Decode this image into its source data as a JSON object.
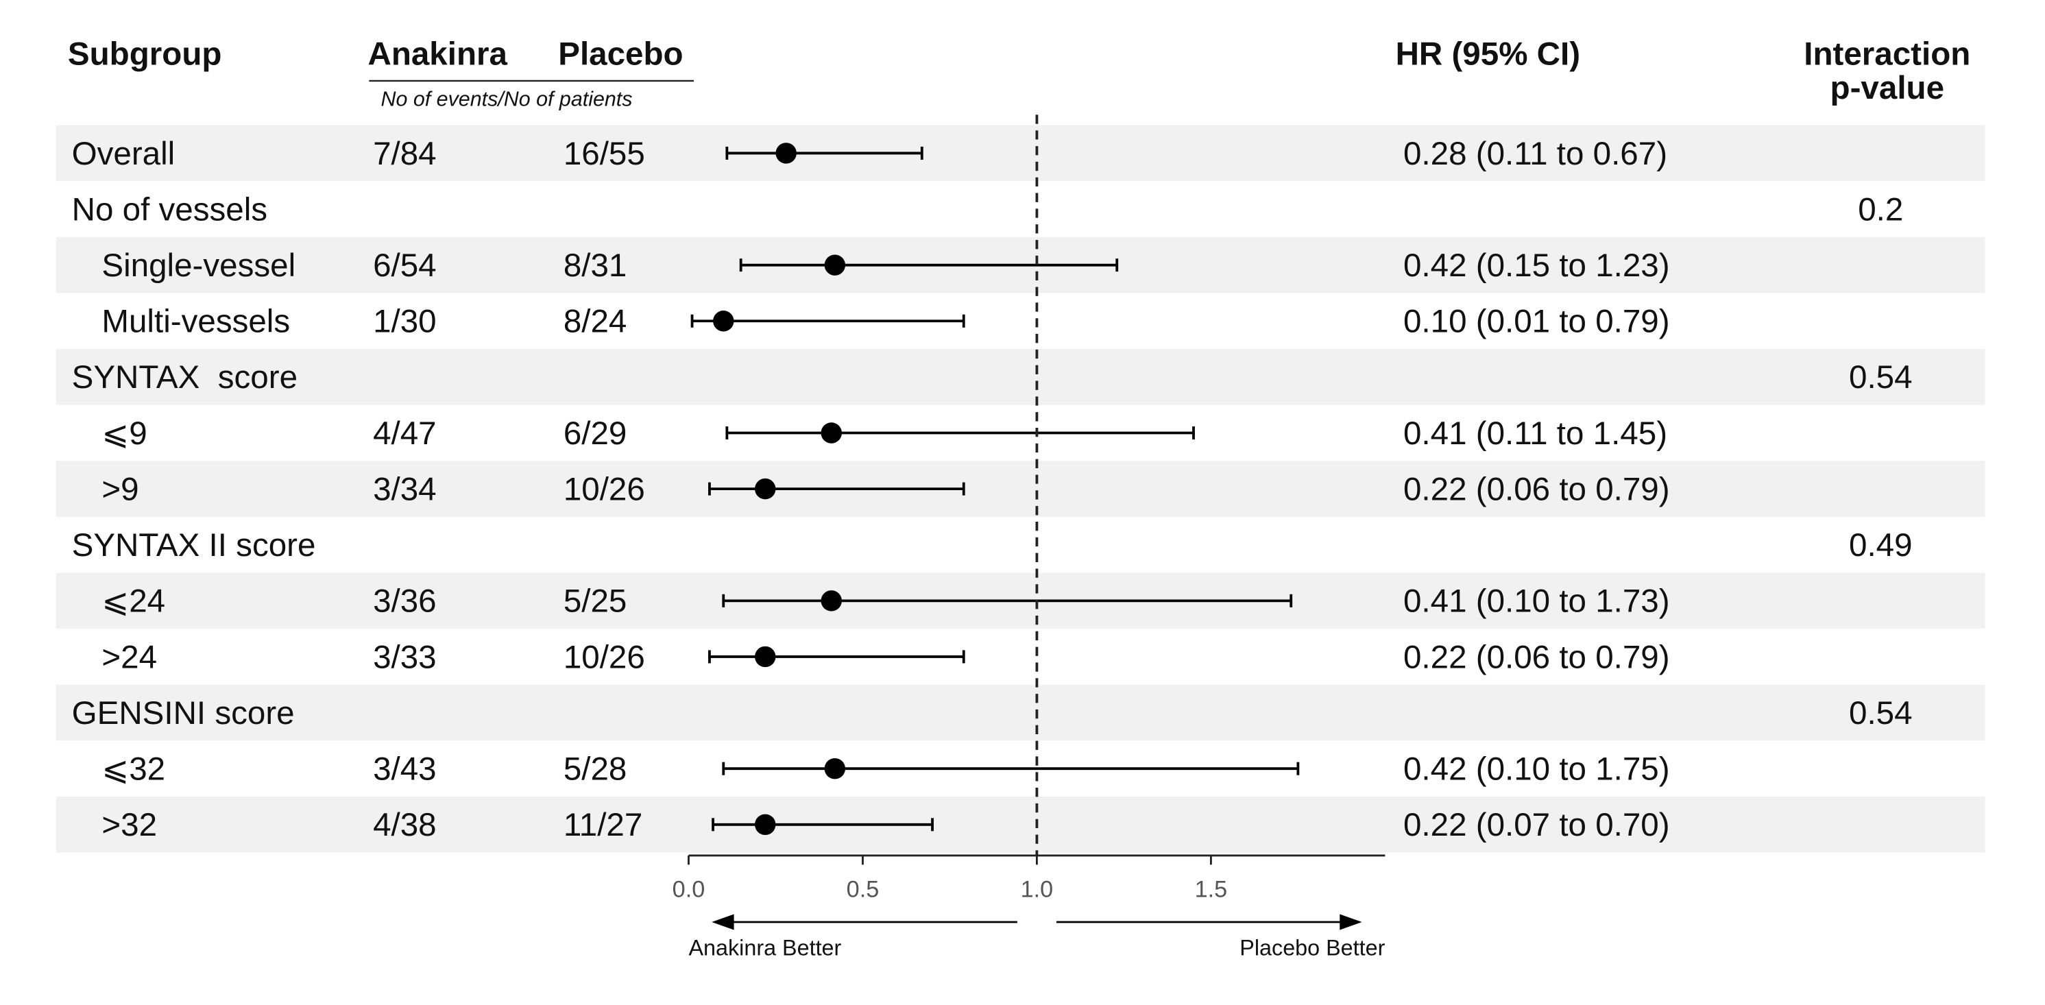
{
  "chart_data": {
    "type": "forest",
    "headers": {
      "subgroup": "Subgroup",
      "anakinra": "Anakinra",
      "placebo": "Placebo",
      "events_note": "No of events/No of patients",
      "hr": "HR (95% CI)",
      "p_value": [
        "Interaction",
        "p-value"
      ]
    },
    "categories": [
      "Overall",
      "No of vessels",
      "Single-vessel",
      "Multi-vessels",
      "SYNTAX  score",
      "⩽9",
      ">9",
      "SYNTAX II score",
      "⩽24",
      ">24",
      "GENSINI score",
      "⩽32",
      ">32"
    ],
    "indented": [
      false,
      false,
      true,
      true,
      false,
      true,
      true,
      false,
      true,
      true,
      false,
      true,
      true
    ],
    "anakinra": [
      "7/84",
      null,
      "6/54",
      "1/30",
      null,
      "4/47",
      "3/34",
      null,
      "3/36",
      "3/33",
      null,
      "3/43",
      "4/38"
    ],
    "placebo": [
      "16/55",
      null,
      "8/31",
      "8/24",
      null,
      "6/29",
      "10/26",
      null,
      "5/25",
      "10/26",
      null,
      "5/28",
      "11/27"
    ],
    "values": [
      0.28,
      null,
      0.42,
      0.1,
      null,
      0.41,
      0.22,
      null,
      0.41,
      0.22,
      null,
      0.42,
      0.22
    ],
    "lower": [
      0.11,
      null,
      0.15,
      0.01,
      null,
      0.11,
      0.06,
      null,
      0.1,
      0.06,
      null,
      0.1,
      0.07
    ],
    "upper": [
      0.67,
      null,
      1.23,
      0.79,
      null,
      1.45,
      0.79,
      null,
      1.73,
      0.79,
      null,
      1.75,
      0.7
    ],
    "value_labels": [
      "0.28 (0.11 to 0.67)",
      null,
      "0.42 (0.15 to 1.23)",
      "0.10 (0.01 to 0.79)",
      null,
      "0.41 (0.11 to 1.45)",
      "0.22 (0.06 to 0.79)",
      null,
      "0.41 (0.10 to 1.73)",
      "0.22 (0.06 to 0.79)",
      null,
      "0.42 (0.10 to 1.75)",
      "0.22 (0.07 to 0.70)"
    ],
    "p_values": [
      null,
      0.2,
      null,
      null,
      0.54,
      null,
      null,
      0.49,
      null,
      null,
      0.54,
      null,
      null
    ],
    "xlim": [
      0,
      2
    ],
    "xticks": [
      {
        "value": 0,
        "label": "0.0"
      },
      0.5,
      {
        "value": 1,
        "label": "1.0"
      },
      1.5
    ],
    "reference_line": 1,
    "left_label": "Anakinra Better",
    "right_label": "Placebo Better",
    "color": "#000000",
    "band_color": "#f0f1f0"
  }
}
